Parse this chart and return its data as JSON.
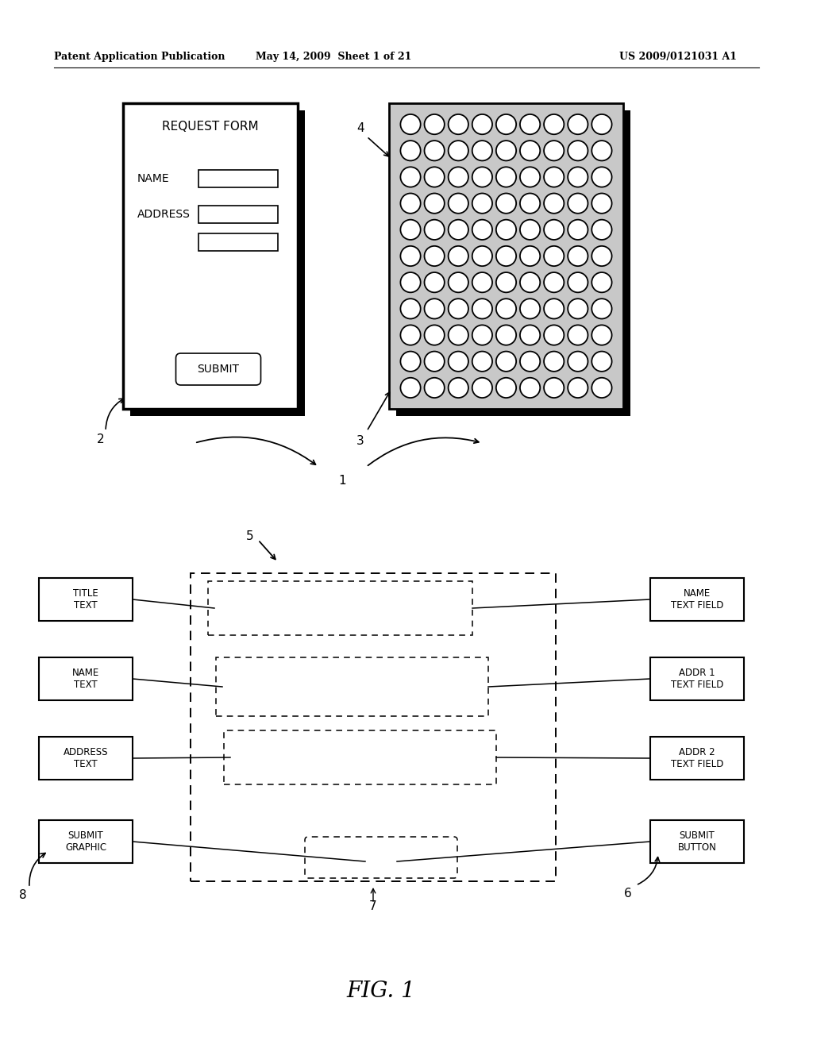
{
  "header_left": "Patent Application Publication",
  "header_mid": "May 14, 2009  Sheet 1 of 21",
  "header_right": "US 2009/0121031 A1",
  "fig_label": "FIG. 1",
  "bg_color": "#ffffff",
  "line_color": "#000000",
  "form_title": "REQUEST FORM",
  "submit_text": "SUBMIT",
  "left_boxes": [
    "TITLE\nTEXT",
    "NAME\nTEXT",
    "ADDRESS\nTEXT",
    "SUBMIT\nGRAPHIC"
  ],
  "right_boxes": [
    "NAME\nTEXT FIELD",
    "ADDR 1\nTEXT FIELD",
    "ADDR 2\nTEXT FIELD",
    "SUBMIT\nBUTTON"
  ]
}
